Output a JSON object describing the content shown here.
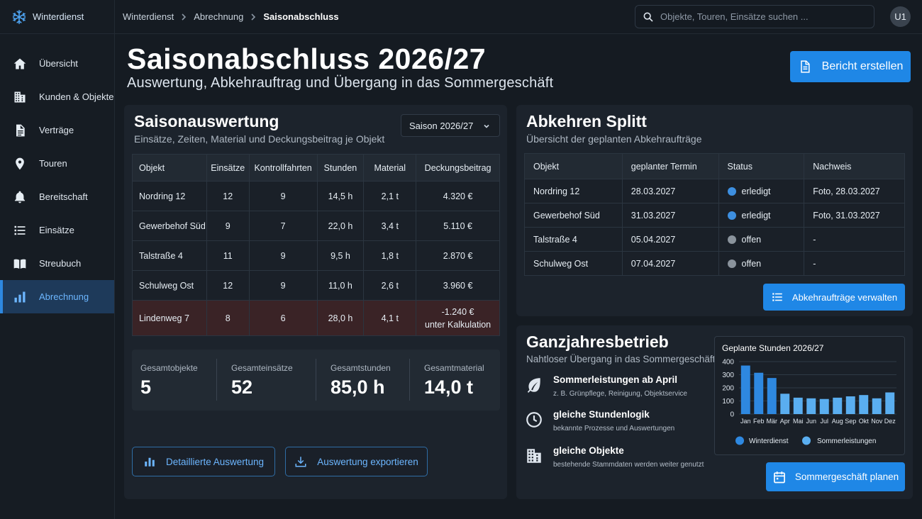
{
  "app": {
    "name": "Winterdienst"
  },
  "sidebar": {
    "items": [
      {
        "label": "Übersicht",
        "icon": "home-icon"
      },
      {
        "label": "Kunden & Objekte",
        "icon": "building-icon"
      },
      {
        "label": "Verträge",
        "icon": "document-icon"
      },
      {
        "label": "Touren",
        "icon": "location-pin-icon"
      },
      {
        "label": "Bereitschaft",
        "icon": "bell-icon"
      },
      {
        "label": "Einsätze",
        "icon": "list-icon"
      },
      {
        "label": "Streubuch",
        "icon": "book-icon"
      },
      {
        "label": "Abrechnung",
        "icon": "bar-chart-icon",
        "active": true
      }
    ]
  },
  "breadcrumb": {
    "items": [
      "Winterdienst",
      "Abrechnung",
      "Saisonabschluss"
    ]
  },
  "search": {
    "placeholder": "Objekte, Touren, Einsätze suchen ..."
  },
  "user": {
    "initials": "U1"
  },
  "header": {
    "title": "Saisonabschluss 2026/27",
    "subtitle": "Auswertung, Abkehrauftrag und Übergang in das Sommergeschäft",
    "report_button": "Bericht erstellen"
  },
  "season": {
    "title": "Saisonauswertung",
    "subtitle": "Einsätze, Zeiten, Material und Deckungsbeitrag je Objekt",
    "select_value": "Saison 2026/27",
    "columns": [
      "Objekt",
      "Einsätze",
      "Kontrollfahrten",
      "Stunden",
      "Material",
      "Deckungsbeitrag"
    ],
    "rows": [
      {
        "objekt": "Nordring 12",
        "einsaetze": "12",
        "kontrollfahrten": "9",
        "stunden": "14,5 h",
        "material": "2,1 t",
        "deckungsbeitrag": "4.320 €"
      },
      {
        "objekt": "Gewerbehof Süd",
        "einsaetze": "9",
        "kontrollfahrten": "7",
        "stunden": "22,0 h",
        "material": "3,4 t",
        "deckungsbeitrag": "5.110 €"
      },
      {
        "objekt": "Talstraße 4",
        "einsaetze": "11",
        "kontrollfahrten": "9",
        "stunden": "9,5 h",
        "material": "1,8 t",
        "deckungsbeitrag": "2.870 €"
      },
      {
        "objekt": "Schulweg Ost",
        "einsaetze": "12",
        "kontrollfahrten": "9",
        "stunden": "11,0 h",
        "material": "2,6 t",
        "deckungsbeitrag": "3.960 €"
      },
      {
        "objekt": "Lindenweg 7",
        "einsaetze": "8",
        "kontrollfahrten": "6",
        "stunden": "28,0 h",
        "material": "4,1 t",
        "deckungsbeitrag": "-1.240 €",
        "note": "unter Kalkulation"
      }
    ],
    "totals": [
      {
        "label": "Gesamtobjekte",
        "value": "5"
      },
      {
        "label": "Gesamteinsätze",
        "value": "52"
      },
      {
        "label": "Gesamtstunden",
        "value": "85,0 h"
      },
      {
        "label": "Gesamtmaterial",
        "value": "14,0 t"
      }
    ],
    "detail_button": "Detaillierte Auswertung",
    "export_button": "Auswertung exportieren"
  },
  "abkehren": {
    "title": "Abkehren Splitt",
    "subtitle": "Übersicht der geplanten Abkehraufträge",
    "columns": [
      "Objekt",
      "geplanter Termin",
      "Status",
      "Nachweis"
    ],
    "rows": [
      {
        "objekt": "Nordring 12",
        "termin": "28.03.2027",
        "status": "erledigt",
        "nachweis": "Foto, 28.03.2027"
      },
      {
        "objekt": "Gewerbehof Süd",
        "termin": "31.03.2027",
        "status": "erledigt",
        "nachweis": "Foto, 31.03.2027"
      },
      {
        "objekt": "Talstraße 4",
        "termin": "05.04.2027",
        "status": "offen",
        "nachweis": "-"
      },
      {
        "objekt": "Schulweg Ost",
        "termin": "07.04.2027",
        "status": "offen",
        "nachweis": "-"
      }
    ],
    "manage_button": "Abkehraufträge verwalten"
  },
  "ganzjahr": {
    "title": "Ganzjahresbetrieb",
    "subtitle": "Nahtloser Übergang in das Sommergeschäft",
    "features": [
      {
        "title": "Sommerleistungen ab April",
        "desc": "z. B. Grünpflege, Reinigung, Objektservice",
        "icon": "leaf-icon"
      },
      {
        "title": "gleiche Stundenlogik",
        "desc": "bekannte Prozesse und Auswertungen",
        "icon": "clock-icon"
      },
      {
        "title": "gleiche Objekte",
        "desc": "bestehende Stammdaten werden weiter genutzt",
        "icon": "building-icon"
      }
    ],
    "plan_button": "Sommergeschäft planen"
  },
  "colors": {
    "accent": "#1f87e6",
    "winter": "#2e88e0",
    "summer": "#5aaef0",
    "done": "#3d8fe0",
    "open": "#8a939c",
    "negative": "#ff6b6b"
  },
  "chart_data": {
    "type": "bar",
    "title": "Geplante Stunden 2026/27",
    "categories": [
      "Jan",
      "Feb",
      "Mär",
      "Apr",
      "Mai",
      "Jun",
      "Jul",
      "Aug",
      "Sep",
      "Okt",
      "Nov",
      "Dez"
    ],
    "values": [
      370,
      315,
      275,
      155,
      125,
      120,
      115,
      125,
      135,
      145,
      120,
      165
    ],
    "series_type": [
      "Winterdienst",
      "Winterdienst",
      "Winterdienst",
      "Sommerleistungen",
      "Sommerleistungen",
      "Sommerleistungen",
      "Sommerleistungen",
      "Sommerleistungen",
      "Sommerleistungen",
      "Sommerleistungen",
      "Sommerleistungen",
      "Sommerleistungen"
    ],
    "legend": [
      "Winterdienst",
      "Sommerleistungen"
    ],
    "legend_position": "bottom",
    "yticks": [
      0,
      100,
      200,
      300,
      400
    ],
    "ylim": [
      0,
      400
    ],
    "grid": true
  }
}
